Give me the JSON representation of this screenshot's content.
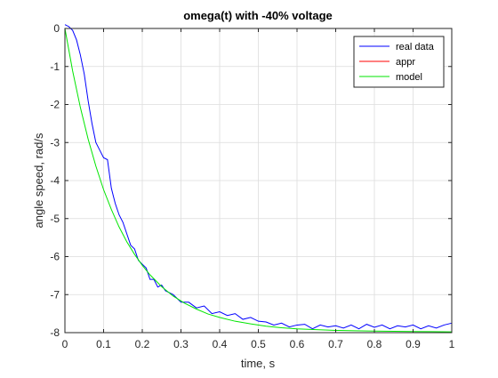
{
  "chart_data": {
    "type": "line",
    "title": "omega(t) with -40% voltage",
    "xlabel": "time, s",
    "ylabel": "angle speed, rad/s",
    "xlim": [
      0,
      1
    ],
    "ylim": [
      -8,
      0
    ],
    "xticks": [
      0,
      0.1,
      0.2,
      0.3,
      0.4,
      0.5,
      0.6,
      0.7,
      0.8,
      0.9,
      1
    ],
    "xtick_labels": [
      "0",
      "0.1",
      "0.2",
      "0.3",
      "0.4",
      "0.5",
      "0.6",
      "0.7",
      "0.8",
      "0.9",
      "1"
    ],
    "yticks": [
      0,
      -1,
      -2,
      -3,
      -4,
      -5,
      -6,
      -7,
      -8
    ],
    "ytick_labels": [
      "0",
      "-1",
      "-2",
      "-3",
      "-4",
      "-5",
      "-6",
      "-7",
      "-8"
    ],
    "grid": true,
    "legend_position": "top-right",
    "series": [
      {
        "name": "real data",
        "color": "#0000ff",
        "x": [
          0,
          0.01,
          0.02,
          0.03,
          0.04,
          0.05,
          0.06,
          0.07,
          0.08,
          0.09,
          0.1,
          0.11,
          0.12,
          0.13,
          0.14,
          0.15,
          0.16,
          0.17,
          0.18,
          0.19,
          0.2,
          0.21,
          0.22,
          0.23,
          0.24,
          0.25,
          0.26,
          0.27,
          0.28,
          0.29,
          0.3,
          0.32,
          0.34,
          0.36,
          0.38,
          0.4,
          0.42,
          0.44,
          0.46,
          0.48,
          0.5,
          0.52,
          0.54,
          0.56,
          0.58,
          0.6,
          0.62,
          0.64,
          0.66,
          0.68,
          0.7,
          0.72,
          0.74,
          0.76,
          0.78,
          0.8,
          0.82,
          0.84,
          0.86,
          0.88,
          0.9,
          0.92,
          0.94,
          0.96,
          0.98,
          1.0
        ],
        "y": [
          0.1,
          0.05,
          -0.05,
          -0.3,
          -0.7,
          -1.2,
          -1.9,
          -2.5,
          -3.0,
          -3.2,
          -3.4,
          -3.45,
          -4.2,
          -4.6,
          -4.9,
          -5.1,
          -5.4,
          -5.7,
          -5.8,
          -6.1,
          -6.2,
          -6.3,
          -6.6,
          -6.6,
          -6.8,
          -6.75,
          -6.9,
          -6.95,
          -7.0,
          -7.1,
          -7.2,
          -7.2,
          -7.35,
          -7.3,
          -7.5,
          -7.45,
          -7.55,
          -7.5,
          -7.65,
          -7.6,
          -7.7,
          -7.72,
          -7.8,
          -7.75,
          -7.85,
          -7.8,
          -7.78,
          -7.9,
          -7.8,
          -7.85,
          -7.82,
          -7.88,
          -7.8,
          -7.9,
          -7.78,
          -7.86,
          -7.8,
          -7.9,
          -7.82,
          -7.85,
          -7.8,
          -7.9,
          -7.82,
          -7.88,
          -7.8,
          -7.75
        ]
      },
      {
        "name": "appr",
        "color": "#ff0000",
        "x": [],
        "y": []
      },
      {
        "name": "model",
        "color": "#00e600",
        "x": [
          0,
          0.02,
          0.04,
          0.06,
          0.08,
          0.1,
          0.12,
          0.14,
          0.16,
          0.18,
          0.2,
          0.22,
          0.25,
          0.28,
          0.31,
          0.34,
          0.37,
          0.4,
          0.44,
          0.48,
          0.52,
          0.56,
          0.6,
          0.65,
          0.7,
          0.75,
          0.8,
          0.85,
          0.9,
          0.95,
          1.0
        ],
        "y": [
          0,
          -1.12,
          -2.08,
          -2.91,
          -3.62,
          -4.24,
          -4.76,
          -5.22,
          -5.61,
          -5.94,
          -6.23,
          -6.48,
          -6.79,
          -7.04,
          -7.23,
          -7.38,
          -7.51,
          -7.6,
          -7.7,
          -7.77,
          -7.83,
          -7.87,
          -7.9,
          -7.92,
          -7.94,
          -7.95,
          -7.96,
          -7.965,
          -7.97,
          -7.975,
          -7.98
        ]
      }
    ]
  }
}
